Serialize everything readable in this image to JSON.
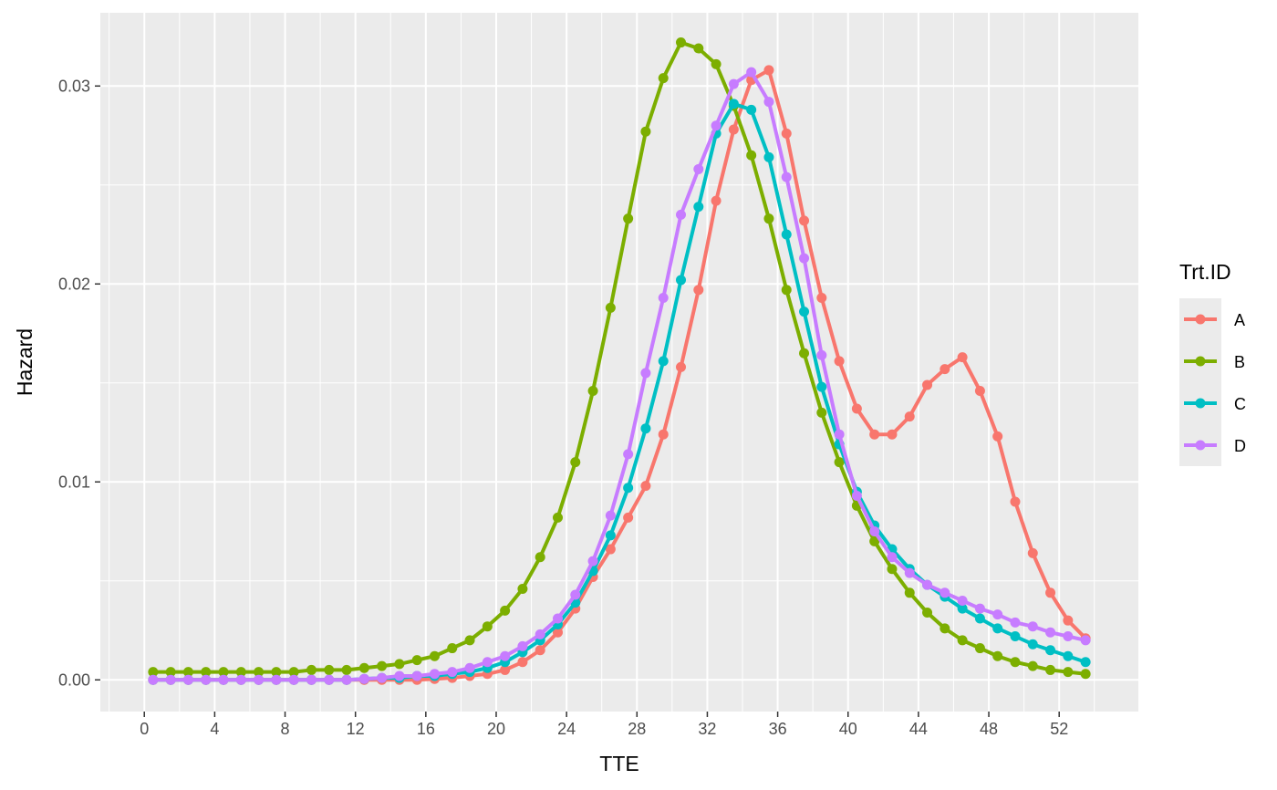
{
  "chart_data": {
    "type": "line",
    "xlabel": "TTE",
    "ylabel": "Hazard",
    "xlim": [
      -2.5,
      56.5
    ],
    "ylim": [
      -0.0016,
      0.0337
    ],
    "x_ticks": [
      0,
      4,
      8,
      12,
      16,
      20,
      24,
      28,
      32,
      36,
      40,
      44,
      48,
      52
    ],
    "y_ticks": [
      0.0,
      0.01,
      0.02,
      0.03
    ],
    "y_tick_labels": [
      "0.00",
      "0.01",
      "0.02",
      "0.03"
    ],
    "grid": true,
    "points": true,
    "legend": {
      "title": "Trt.ID",
      "position": "right"
    },
    "x": [
      0.5,
      1.5,
      2.5,
      3.5,
      4.5,
      5.5,
      6.5,
      7.5,
      8.5,
      9.5,
      10.5,
      11.5,
      12.5,
      13.5,
      14.5,
      15.5,
      16.5,
      17.5,
      18.5,
      19.5,
      20.5,
      21.5,
      22.5,
      23.5,
      24.5,
      25.5,
      26.5,
      27.5,
      28.5,
      29.5,
      30.5,
      31.5,
      32.5,
      33.5,
      34.5,
      35.5,
      36.5,
      37.5,
      38.5,
      39.5,
      40.5,
      41.5,
      42.5,
      43.5,
      44.5,
      45.5,
      46.5,
      47.5,
      48.5,
      49.5,
      50.5,
      51.5,
      52.5,
      53.5
    ],
    "series": [
      {
        "name": "A",
        "color": "#F8766D",
        "values": [
          0,
          0,
          0,
          0,
          0,
          0,
          0,
          0,
          0,
          0,
          0,
          0,
          0,
          0,
          0,
          0,
          5e-05,
          0.0001,
          0.0002,
          0.0003,
          0.0005,
          0.0009,
          0.0015,
          0.0024,
          0.0036,
          0.0052,
          0.0066,
          0.0082,
          0.0098,
          0.0124,
          0.0158,
          0.0197,
          0.0242,
          0.0278,
          0.0303,
          0.0308,
          0.0276,
          0.0232,
          0.0193,
          0.0161,
          0.0137,
          0.0124,
          0.0124,
          0.0133,
          0.0149,
          0.0157,
          0.0163,
          0.0146,
          0.0123,
          0.009,
          0.0064,
          0.0044,
          0.003,
          0.0021
        ]
      },
      {
        "name": "B",
        "color": "#7CAE00",
        "values": [
          0.0004,
          0.0004,
          0.0004,
          0.0004,
          0.0004,
          0.0004,
          0.0004,
          0.0004,
          0.0004,
          0.0005,
          0.0005,
          0.0005,
          0.0006,
          0.0007,
          0.0008,
          0.001,
          0.0012,
          0.0016,
          0.002,
          0.0027,
          0.0035,
          0.0046,
          0.0062,
          0.0082,
          0.011,
          0.0146,
          0.0188,
          0.0233,
          0.0277,
          0.0304,
          0.0322,
          0.0319,
          0.0311,
          0.029,
          0.0265,
          0.0233,
          0.0197,
          0.0165,
          0.0135,
          0.011,
          0.0088,
          0.007,
          0.0056,
          0.0044,
          0.0034,
          0.0026,
          0.002,
          0.0016,
          0.0012,
          0.0009,
          0.0007,
          0.0005,
          0.0004,
          0.0003
        ]
      },
      {
        "name": "C",
        "color": "#00BFC4",
        "values": [
          0,
          0,
          0,
          0,
          0,
          0,
          0,
          0,
          0,
          0,
          0,
          0,
          5e-05,
          0.0001,
          0.0001,
          0.0002,
          0.0002,
          0.0003,
          0.0004,
          0.0006,
          0.0009,
          0.0014,
          0.002,
          0.0028,
          0.0039,
          0.0055,
          0.0073,
          0.0097,
          0.0127,
          0.0161,
          0.0202,
          0.0239,
          0.0276,
          0.0291,
          0.0288,
          0.0264,
          0.0225,
          0.0186,
          0.0148,
          0.0119,
          0.0095,
          0.0078,
          0.0066,
          0.0056,
          0.0048,
          0.0042,
          0.0036,
          0.0031,
          0.0026,
          0.0022,
          0.0018,
          0.0015,
          0.0012,
          0.0009
        ]
      },
      {
        "name": "D",
        "color": "#C77CFF",
        "values": [
          0,
          0,
          0,
          0,
          0,
          0,
          0,
          0,
          0,
          0,
          0,
          0,
          5e-05,
          0.0001,
          0.0002,
          0.0002,
          0.0003,
          0.0004,
          0.0006,
          0.0009,
          0.0012,
          0.0017,
          0.0023,
          0.0031,
          0.0043,
          0.006,
          0.0083,
          0.0114,
          0.0155,
          0.0193,
          0.0235,
          0.0258,
          0.028,
          0.0301,
          0.0307,
          0.0292,
          0.0254,
          0.0213,
          0.0164,
          0.0124,
          0.0093,
          0.0075,
          0.0062,
          0.0054,
          0.0048,
          0.0044,
          0.004,
          0.0036,
          0.0033,
          0.0029,
          0.0027,
          0.0024,
          0.0022,
          0.002
        ]
      }
    ]
  }
}
